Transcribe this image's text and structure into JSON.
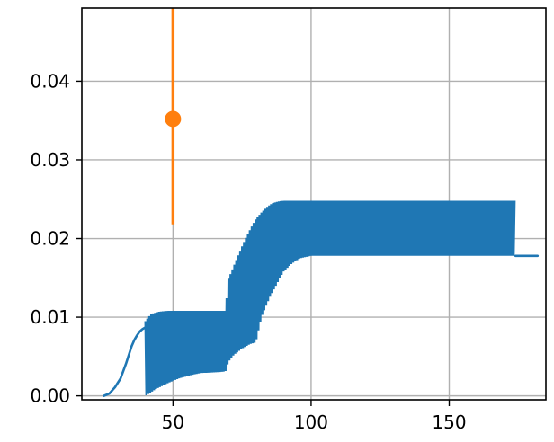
{
  "chart_data": {
    "type": "line",
    "title": "",
    "xlabel": "",
    "ylabel": "",
    "xlim": [
      17,
      185
    ],
    "ylim": [
      -0.0005,
      0.0493
    ],
    "grid": true,
    "x_ticks": [
      50,
      100,
      150
    ],
    "x_tick_labels": [
      "50",
      "100",
      "150"
    ],
    "y_ticks": [
      0.0,
      0.01,
      0.02,
      0.03,
      0.04
    ],
    "y_tick_labels": [
      "0.00",
      "0.01",
      "0.02",
      "0.03",
      "0.04"
    ],
    "colors": {
      "series": "#1f77b4",
      "errorbar": "#ff7f0e",
      "grid": "#b0b0b0"
    },
    "series": [
      {
        "style": "line",
        "x": [
          25,
          27,
          29,
          31,
          33,
          35,
          36,
          37,
          38,
          39,
          40
        ],
        "y": [
          0.0,
          0.0003,
          0.0011,
          0.0022,
          0.0041,
          0.0063,
          0.0071,
          0.0077,
          0.0082,
          0.0085,
          0.0087
        ]
      },
      {
        "style": "oscillating_band",
        "x_range": [
          40,
          174
        ],
        "upper": {
          "x": [
            40,
            42,
            45,
            48,
            52,
            58,
            65,
            69,
            70,
            72,
            74,
            76,
            78,
            80,
            82,
            84,
            86,
            88,
            90,
            95,
            120,
            174
          ],
          "y": [
            0.0095,
            0.0104,
            0.0107,
            0.0108,
            0.0108,
            0.0108,
            0.0108,
            0.0108,
            0.0148,
            0.0165,
            0.0182,
            0.0198,
            0.0212,
            0.0225,
            0.0233,
            0.024,
            0.0245,
            0.0247,
            0.0248,
            0.0248,
            0.0248,
            0.0248
          ]
        },
        "lower": {
          "x": [
            40,
            44,
            48,
            52,
            56,
            60,
            66,
            69,
            70,
            72,
            75,
            78,
            80,
            82,
            85,
            88,
            90,
            93,
            96,
            100,
            110,
            174
          ],
          "y": [
            0.0,
            0.0009,
            0.0016,
            0.0022,
            0.0026,
            0.0029,
            0.003,
            0.0031,
            0.0043,
            0.0052,
            0.006,
            0.0066,
            0.0068,
            0.01,
            0.0125,
            0.0145,
            0.0158,
            0.0168,
            0.0175,
            0.0178,
            0.0178,
            0.0178
          ]
        },
        "period": 0.7
      },
      {
        "style": "line",
        "x": [
          174,
          182
        ],
        "y": [
          0.0178,
          0.0178
        ]
      }
    ],
    "errorbar": {
      "x": 50,
      "y": 0.0352,
      "ylow": 0.0218,
      "yhigh": 0.0493
    }
  }
}
